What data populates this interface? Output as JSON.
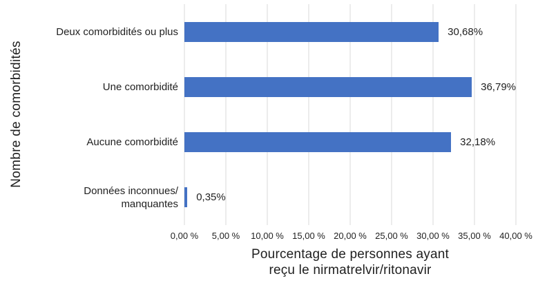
{
  "chart_data": {
    "type": "bar",
    "orientation": "horizontal",
    "categories": [
      "Deux comorbidités ou plus",
      "Une comorbidité",
      "Aucune comorbidité",
      "Données inconnues/\nmanquantes"
    ],
    "values": [
      30.68,
      36.79,
      32.18,
      0.35
    ],
    "value_labels": [
      "30,68%",
      "36,79%",
      "32,18%",
      "0,35%"
    ],
    "xlabel": "Pourcentage de personnes ayant\nreçu le nirmatrelvir/ritonavir",
    "ylabel": "Nombre de comorbidités",
    "xlim": [
      0,
      40
    ],
    "xticks": [
      0,
      5,
      10,
      15,
      20,
      25,
      30,
      35,
      40
    ],
    "xtick_labels": [
      "0,00 %",
      "5,00 %",
      "10,00 %",
      "15,00 %",
      "20,00 %",
      "25,00 %",
      "30,00 %",
      "35,00 %",
      "40,00 %"
    ],
    "bar_color": "#4472c4",
    "gridline_color": "#d9d9d9",
    "text_color": "#1f1f1f",
    "grid": true,
    "legend": false
  }
}
